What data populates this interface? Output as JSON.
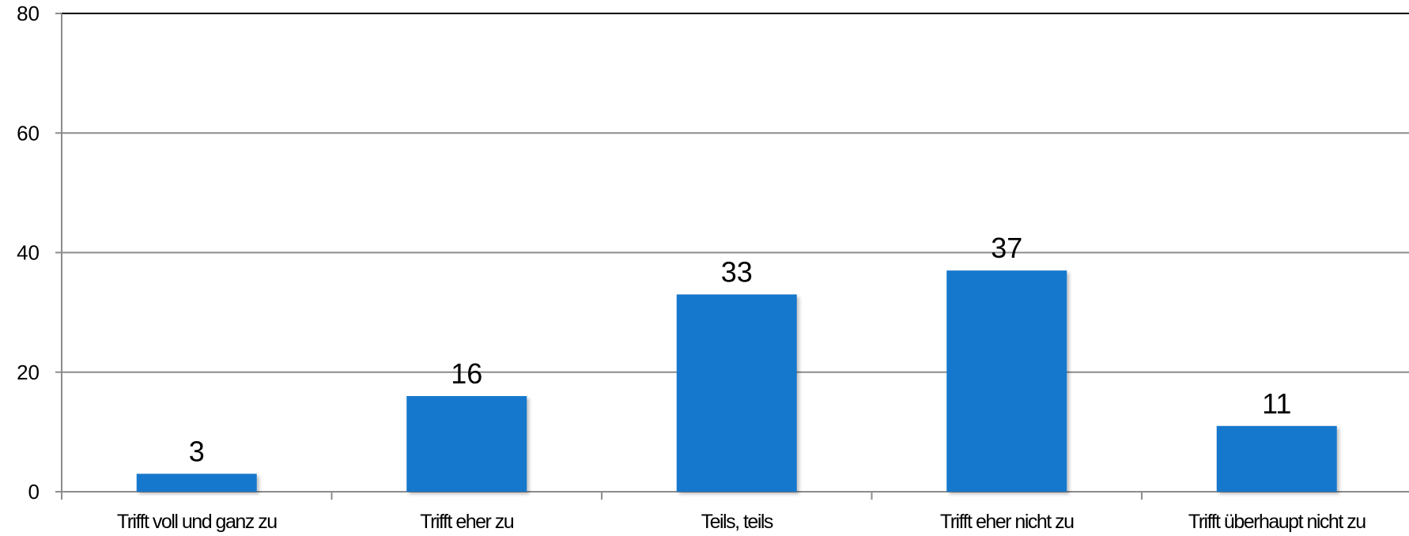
{
  "chart_data": {
    "type": "bar",
    "categories": [
      "Trifft voll und ganz zu",
      "Trifft eher zu",
      "Teils, teils",
      "Trifft eher nicht zu",
      "Trifft überhaupt nicht zu"
    ],
    "values": [
      3,
      16,
      33,
      37,
      11
    ],
    "title": "",
    "xlabel": "",
    "ylabel": "",
    "ylim": [
      0,
      80
    ],
    "yticks": [
      0,
      20,
      40,
      60,
      80
    ],
    "grid": true,
    "legend": "none",
    "data_labels": true,
    "bar_color": "#1478CC",
    "grid_color": "#8C8C8C",
    "axis_color": "#8C8C8C"
  }
}
